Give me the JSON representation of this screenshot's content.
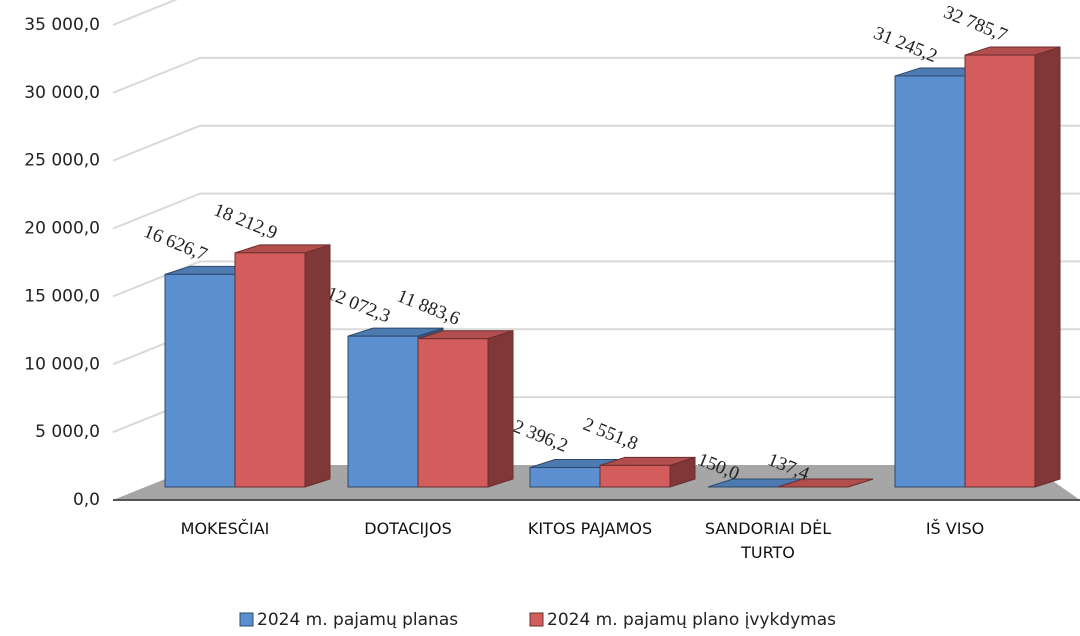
{
  "chart_data": {
    "type": "bar3d",
    "categories": [
      "MOKESČIAI",
      "DOTACIJOS",
      "KITOS PAJAMOS",
      "SANDORIAI DĖL TURTO",
      "IŠ VISO"
    ],
    "series": [
      {
        "name": "2024 m. pajamų planas",
        "color": "#5b8fd0",
        "values": [
          16626.7,
          12072.3,
          2396.2,
          150.0,
          31245.2
        ],
        "value_labels": [
          "16 626,7",
          "12 072,3",
          "2 396,2",
          "150,0",
          "31 245,2"
        ]
      },
      {
        "name": "2024 m. pajamų plano įvykdymas",
        "color": "#d35c5c",
        "values": [
          18212.9,
          11883.6,
          2551.8,
          137.4,
          32785.7
        ],
        "value_labels": [
          "18 212,9",
          "11 883,6",
          "2 551,8",
          "137,4",
          "32 785,7"
        ]
      }
    ],
    "ylim": [
      0,
      35000
    ],
    "yticks": [
      {
        "value": 0,
        "label": "0,0"
      },
      {
        "value": 5000,
        "label": "5 000,0"
      },
      {
        "value": 10000,
        "label": "10 000,0"
      },
      {
        "value": 15000,
        "label": "15 000,0"
      },
      {
        "value": 20000,
        "label": "20 000,0"
      },
      {
        "value": 25000,
        "label": "25 000,0"
      },
      {
        "value": 30000,
        "label": "30 000,0"
      },
      {
        "value": 35000,
        "label": "35 000,0"
      }
    ],
    "grid": true,
    "legend": "bottom"
  }
}
